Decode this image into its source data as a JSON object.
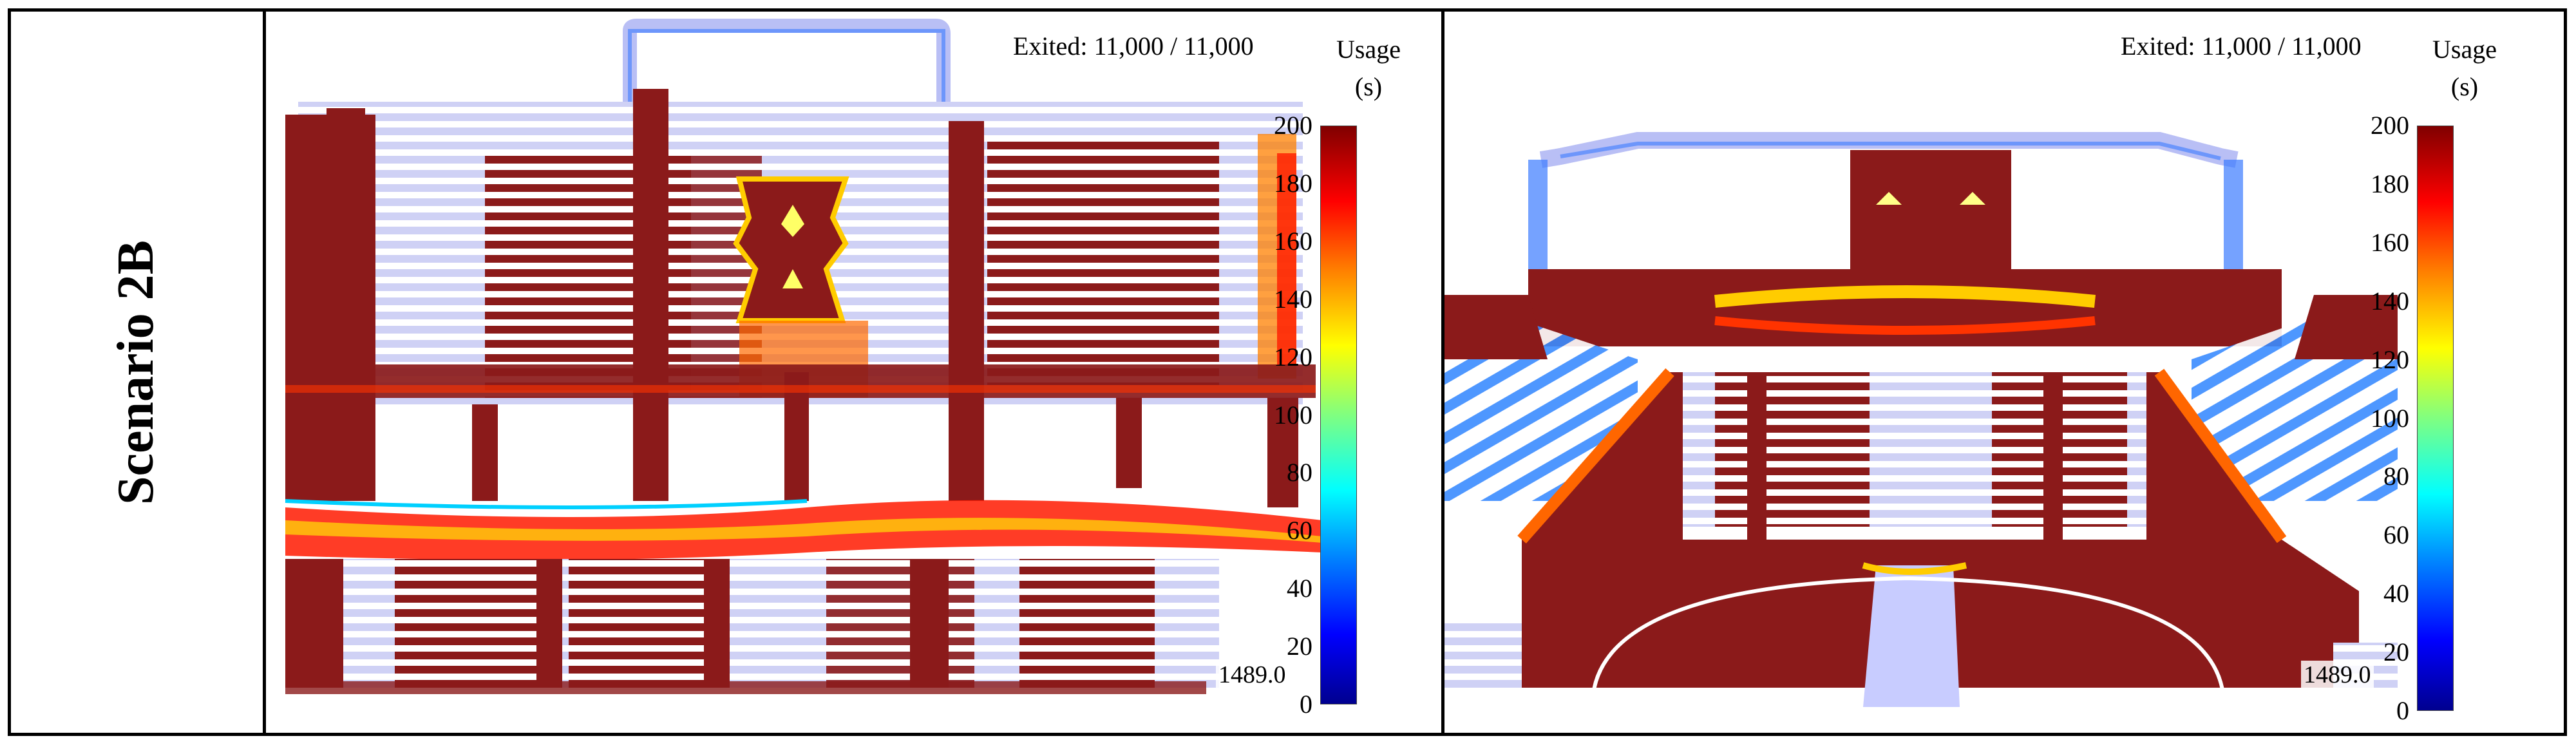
{
  "row_label": "Scenario 2B",
  "colors": {
    "maroon": "#8b1a1a",
    "red": "#ff0000",
    "yellow": "#ffff00",
    "cyan": "#00ffff",
    "blue": "#0000ff",
    "lavender": "#d8daf8"
  },
  "panels": [
    {
      "exited_text": "Exited: 11,000 / 11,000",
      "colorbar_title_line1": "Usage",
      "colorbar_title_line2": "(s)",
      "colorbar_ticks": [
        "200",
        "180",
        "160",
        "140",
        "120",
        "100",
        "80",
        "60",
        "40",
        "20",
        "0"
      ],
      "colorbar_range": [
        0,
        200
      ],
      "timer": "1489.0"
    },
    {
      "exited_text": "Exited: 11,000 / 11,000",
      "colorbar_title_line1": "Usage",
      "colorbar_title_line2": "(s)",
      "colorbar_ticks": [
        "200",
        "180",
        "160",
        "140",
        "120",
        "100",
        "80",
        "60",
        "40",
        "20",
        "0"
      ],
      "colorbar_range": [
        0,
        200
      ],
      "timer": "1489.0"
    }
  ]
}
